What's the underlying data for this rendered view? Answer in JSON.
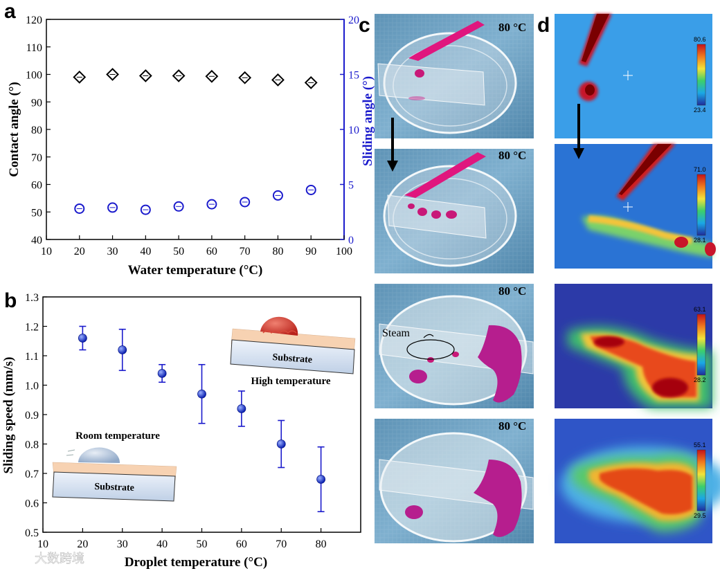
{
  "panel_letters": {
    "a": "a",
    "b": "b",
    "c": "c",
    "d": "d"
  },
  "watermark": "大数跨境",
  "chart_data": [
    {
      "id": "a",
      "type": "scatter",
      "xlabel": "Water temperature (°C)",
      "ylabel": "Contact angle (°)",
      "y2label": "Sliding angle (°)",
      "xlim": [
        10,
        100
      ],
      "ylim": [
        40,
        120
      ],
      "y2lim": [
        0,
        20
      ],
      "xticks": [
        10,
        20,
        30,
        40,
        50,
        60,
        70,
        80,
        90,
        100
      ],
      "yticks": [
        40,
        50,
        60,
        70,
        80,
        90,
        100,
        110,
        120
      ],
      "y2ticks": [
        0,
        5,
        10,
        15,
        20
      ],
      "series": [
        {
          "name": "Contact angle",
          "axis": "left",
          "marker": "diamond",
          "color": "#000000",
          "x": [
            20,
            30,
            40,
            50,
            60,
            70,
            80,
            90
          ],
          "y": [
            99,
            100,
            99.5,
            99.5,
            99.3,
            98.8,
            98,
            97
          ]
        },
        {
          "name": "Sliding angle",
          "axis": "right",
          "marker": "circle",
          "color": "#1a1acc",
          "x": [
            20,
            30,
            40,
            50,
            60,
            70,
            80,
            90
          ],
          "y": [
            2.8,
            2.9,
            2.7,
            3.0,
            3.2,
            3.4,
            4.0,
            4.5
          ]
        }
      ],
      "axis_colors": {
        "left": "#000000",
        "right": "#1a1acc"
      }
    },
    {
      "id": "b",
      "type": "scatter",
      "xlabel": "Droplet temperature (°C)",
      "ylabel": "Sliding speed (mm/s)",
      "xlim": [
        10,
        90
      ],
      "ylim": [
        0.5,
        1.3
      ],
      "xticks": [
        10,
        20,
        30,
        40,
        50,
        60,
        70,
        80
      ],
      "yticks": [
        0.5,
        0.6,
        0.7,
        0.8,
        0.9,
        1.0,
        1.1,
        1.2,
        1.3
      ],
      "series": [
        {
          "name": "Sliding speed",
          "color": "#1a1acc",
          "x": [
            20,
            30,
            40,
            50,
            60,
            70,
            80
          ],
          "y": [
            1.16,
            1.12,
            1.04,
            0.97,
            0.92,
            0.8,
            0.68
          ],
          "err": [
            0.04,
            0.07,
            0.03,
            0.1,
            0.06,
            0.08,
            0.11
          ]
        }
      ],
      "insets": {
        "substrate": "Substrate",
        "room_temperature": "Room temperature",
        "high_temperature": "High temperature"
      }
    }
  ],
  "panel_c": {
    "frames": [
      {
        "temp": "80 °C"
      },
      {
        "temp": "80 °C"
      },
      {
        "temp": "80 °C",
        "annotation": "Steam"
      },
      {
        "temp": "80 °C"
      }
    ]
  },
  "panel_d": {
    "scales": [
      {
        "max": "80.6",
        "min": "23.4"
      },
      {
        "max": "71.0",
        "min": "28.1"
      },
      {
        "max": "63.1",
        "min": "28.2"
      },
      {
        "max": "55.1",
        "min": "29.5"
      }
    ]
  }
}
